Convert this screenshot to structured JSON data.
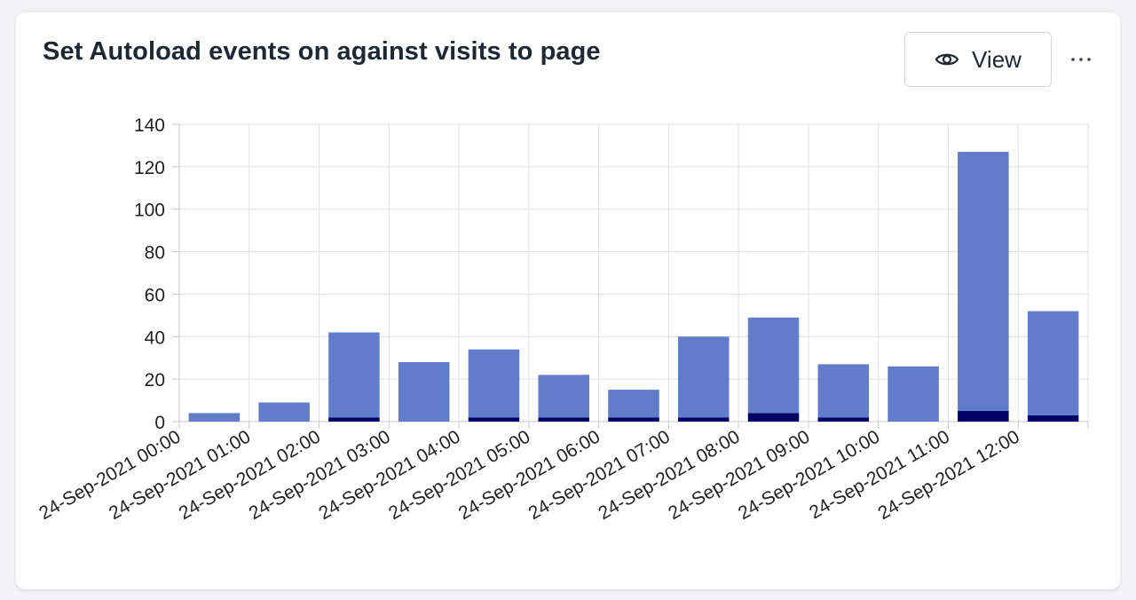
{
  "card": {
    "title": "Set Autoload events on against visits to page",
    "view_label": "View",
    "more_icon": "more-horizontal-icon",
    "view_icon": "eye-icon"
  },
  "chart_data": {
    "type": "bar",
    "stacked": true,
    "categories": [
      "24-Sep-2021 00:00",
      "24-Sep-2021 01:00",
      "24-Sep-2021 02:00",
      "24-Sep-2021 03:00",
      "24-Sep-2021 04:00",
      "24-Sep-2021 05:00",
      "24-Sep-2021 06:00",
      "24-Sep-2021 07:00",
      "24-Sep-2021 08:00",
      "24-Sep-2021 09:00",
      "24-Sep-2021 10:00",
      "24-Sep-2021 11:00",
      "24-Sep-2021 12:00"
    ],
    "series": [
      {
        "values": [
          0,
          0,
          2,
          0,
          2,
          2,
          2,
          2,
          4,
          2,
          0,
          5,
          3
        ],
        "color": "#000066"
      },
      {
        "values": [
          4,
          9,
          40,
          28,
          32,
          20,
          13,
          38,
          45,
          25,
          26,
          122,
          49
        ],
        "color": "#617dc9"
      }
    ],
    "ylim": [
      0,
      140
    ],
    "yticks": [
      0,
      20,
      40,
      60,
      80,
      100,
      120,
      140
    ],
    "grid": true,
    "gridColor": "#e0e0e0",
    "axisColor": "#c8c8c8"
  }
}
